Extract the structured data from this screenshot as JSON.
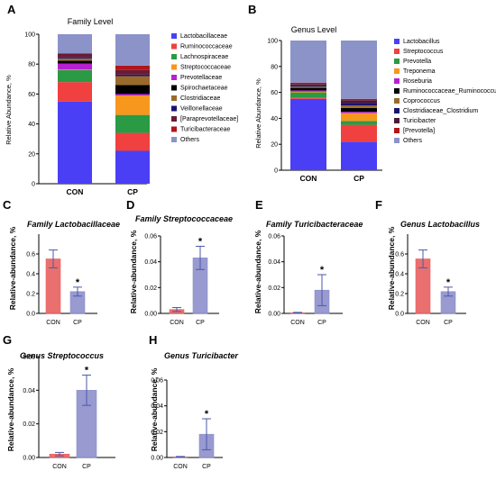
{
  "colors": {
    "red": "#e8605f",
    "purple": "#8d8fcb",
    "axis": "#000000"
  },
  "chart_data": [
    {
      "panel": "A",
      "type": "bar",
      "stacked": true,
      "title": "Family Level",
      "ylabel": "Relative Abundance, %",
      "ylim": [
        0,
        100
      ],
      "yticks": [
        0,
        20,
        40,
        60,
        80,
        100
      ],
      "categories": [
        "CON",
        "CP"
      ],
      "legend_position": "right",
      "series": [
        {
          "name": "Lactobacillaceae",
          "color": "#4a3ff5",
          "values": [
            55,
            22
          ]
        },
        {
          "name": "Ruminococcaceae",
          "color": "#f04040",
          "values": [
            13,
            12
          ]
        },
        {
          "name": "Lachnospiraceae",
          "color": "#2a9a44",
          "values": [
            8,
            12
          ]
        },
        {
          "name": "Streptococcaceae",
          "color": "#f7971e",
          "values": [
            0.3,
            13
          ]
        },
        {
          "name": "Prevotellaceae",
          "color": "#b81fd0",
          "values": [
            4,
            1
          ]
        },
        {
          "name": "Spirochaetaceae",
          "color": "#000000",
          "values": [
            2,
            6
          ]
        },
        {
          "name": "Clostridiaceae",
          "color": "#9a6a2c",
          "values": [
            1.5,
            6
          ]
        },
        {
          "name": "Veillonellaceae",
          "color": "#1a1370",
          "values": [
            1,
            1
          ]
        },
        {
          "name": "[Paraprevotellaceae]",
          "color": "#6a1b35",
          "values": [
            2,
            3
          ]
        },
        {
          "name": "Turicibacteraceae",
          "color": "#b2151b",
          "values": [
            0.5,
            3
          ]
        },
        {
          "name": "Others",
          "color": "#8b93c8",
          "values": [
            12.7,
            21
          ]
        }
      ]
    },
    {
      "panel": "B",
      "type": "bar",
      "stacked": true,
      "title": "Genus Level",
      "ylabel": "Relative Abundance, %",
      "ylim": [
        0,
        100
      ],
      "yticks": [
        0,
        20,
        40,
        60,
        80,
        100
      ],
      "categories": [
        "CON",
        "CP"
      ],
      "legend_position": "right",
      "series": [
        {
          "name": "Lactobacillus",
          "color": "#4a3ff5",
          "values": [
            55,
            22
          ]
        },
        {
          "name": "Streptococcus",
          "color": "#f04040",
          "values": [
            1,
            13
          ]
        },
        {
          "name": "Prevotella",
          "color": "#2a9a44",
          "values": [
            4,
            3
          ]
        },
        {
          "name": "Treponema",
          "color": "#f7971e",
          "values": [
            0.5,
            6
          ]
        },
        {
          "name": "Roseburia",
          "color": "#b81fd0",
          "values": [
            1,
            1
          ]
        },
        {
          "name": "Ruminococcaceae_Ruminococcus",
          "color": "#000000",
          "values": [
            2,
            3
          ]
        },
        {
          "name": "Coprococcus",
          "color": "#9a6a2c",
          "values": [
            1,
            2
          ]
        },
        {
          "name": "Clostridiaceae_Clostridium",
          "color": "#1a1370",
          "values": [
            1,
            2
          ]
        },
        {
          "name": "Turicibacter",
          "color": "#4a1a35",
          "values": [
            1,
            2
          ]
        },
        {
          "name": "[Prevotella]",
          "color": "#b2151b",
          "values": [
            1,
            1
          ]
        },
        {
          "name": "Others",
          "color": "#8b93c8",
          "values": [
            32.5,
            45
          ]
        }
      ]
    },
    {
      "panel": "C",
      "type": "bar",
      "title": "Family Lactobacillaceae",
      "ylabel": "Relative-abundance, %",
      "ylim": [
        0,
        0.8
      ],
      "yticks": [
        0.0,
        0.2,
        0.4,
        0.6
      ],
      "categories": [
        "CON",
        "CP"
      ],
      "values": [
        0.55,
        0.22
      ],
      "errors": [
        0.09,
        0.045
      ],
      "significant": [
        false,
        true
      ]
    },
    {
      "panel": "D",
      "type": "bar",
      "title": "Family Streptococcaceae",
      "ylabel": "Relative-abundance, %",
      "ylim": [
        0,
        0.06
      ],
      "yticks": [
        0.0,
        0.02,
        0.04,
        0.06
      ],
      "categories": [
        "CON",
        "CP"
      ],
      "values": [
        0.003,
        0.043
      ],
      "errors": [
        0.0015,
        0.009
      ],
      "significant": [
        false,
        true
      ]
    },
    {
      "panel": "E",
      "type": "bar",
      "title": "Family Turicibacteraceae",
      "ylabel": "Relative-abundance, %",
      "ylim": [
        0,
        0.06
      ],
      "yticks": [
        0.0,
        0.02,
        0.04,
        0.06
      ],
      "categories": [
        "CON",
        "CP"
      ],
      "values": [
        0.0005,
        0.018
      ],
      "errors": [
        0.0003,
        0.012
      ],
      "significant": [
        false,
        true
      ]
    },
    {
      "panel": "F",
      "type": "bar",
      "title": "Genus Lactobacillus",
      "ylabel": "Relative-abundance, %",
      "ylim": [
        0,
        0.8
      ],
      "yticks": [
        0.0,
        0.2,
        0.4,
        0.6
      ],
      "categories": [
        "CON",
        "CP"
      ],
      "values": [
        0.55,
        0.22
      ],
      "errors": [
        0.09,
        0.045
      ],
      "significant": [
        false,
        true
      ]
    },
    {
      "panel": "G",
      "type": "bar",
      "title": "Genus Streptococcus",
      "ylabel": "Relative-abundance, %",
      "ylim": [
        0,
        0.06
      ],
      "yticks": [
        0.0,
        0.02,
        0.04,
        0.06
      ],
      "categories": [
        "CON",
        "CP"
      ],
      "values": [
        0.002,
        0.04
      ],
      "errors": [
        0.001,
        0.009
      ],
      "significant": [
        false,
        true
      ]
    },
    {
      "panel": "H",
      "type": "bar",
      "title": "Genus Turicibacter",
      "ylabel": "Relative-abundance, %",
      "ylim": [
        0,
        0.06
      ],
      "yticks": [
        0.0,
        0.02,
        0.04,
        0.06
      ],
      "categories": [
        "CON",
        "CP"
      ],
      "values": [
        0.0005,
        0.018
      ],
      "errors": [
        0.0003,
        0.012
      ],
      "significant": [
        false,
        true
      ]
    }
  ]
}
